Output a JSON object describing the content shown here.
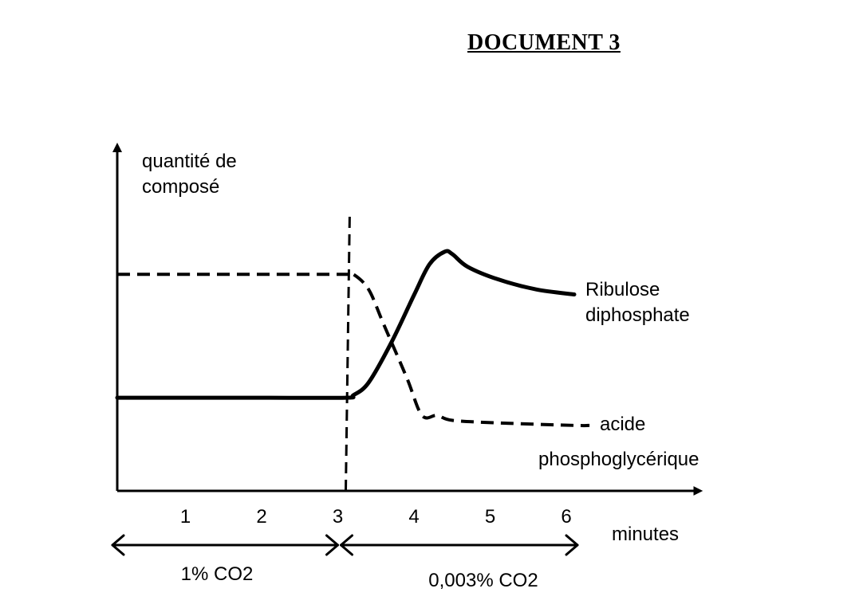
{
  "document": {
    "title": "DOCUMENT 3"
  },
  "chart_data": {
    "type": "line",
    "title": "",
    "ylabel": [
      "quantité de",
      "composé"
    ],
    "xlabel": "minutes",
    "x_ticks": [
      "1",
      "2",
      "3",
      "4",
      "5",
      "6"
    ],
    "xlim": [
      0,
      7.5
    ],
    "ylim": [
      0,
      1
    ],
    "grid": false,
    "legend": "none",
    "annotations": [
      {
        "x": 3,
        "type": "vertical-dashed-line"
      }
    ],
    "periods": [
      {
        "label": "1% CO2",
        "from": 0,
        "to": 3
      },
      {
        "label": "0,003% CO2",
        "from": 3,
        "to": 6
      }
    ],
    "series": [
      {
        "name_lines": [
          "Ribulose",
          "diphosphate"
        ],
        "style": "solid",
        "color": "#000000",
        "x": [
          0,
          1,
          2,
          3,
          3.1,
          3.3,
          3.6,
          3.9,
          4.1,
          4.3,
          4.4,
          4.6,
          5.0,
          5.5,
          6.0
        ],
        "y": [
          0.37,
          0.37,
          0.37,
          0.37,
          0.38,
          0.43,
          0.59,
          0.78,
          0.9,
          0.95,
          0.94,
          0.89,
          0.84,
          0.8,
          0.78
        ]
      },
      {
        "name_lines": [
          "acide",
          "phosphoglycérique"
        ],
        "style": "dashed",
        "color": "#000000",
        "x": [
          0,
          1,
          2,
          3,
          3.1,
          3.3,
          3.5,
          3.8,
          4.0,
          4.2,
          4.4,
          5.0,
          6.0,
          6.2
        ],
        "y": [
          0.86,
          0.86,
          0.86,
          0.86,
          0.86,
          0.8,
          0.66,
          0.45,
          0.3,
          0.3,
          0.28,
          0.27,
          0.26,
          0.26
        ]
      }
    ]
  }
}
